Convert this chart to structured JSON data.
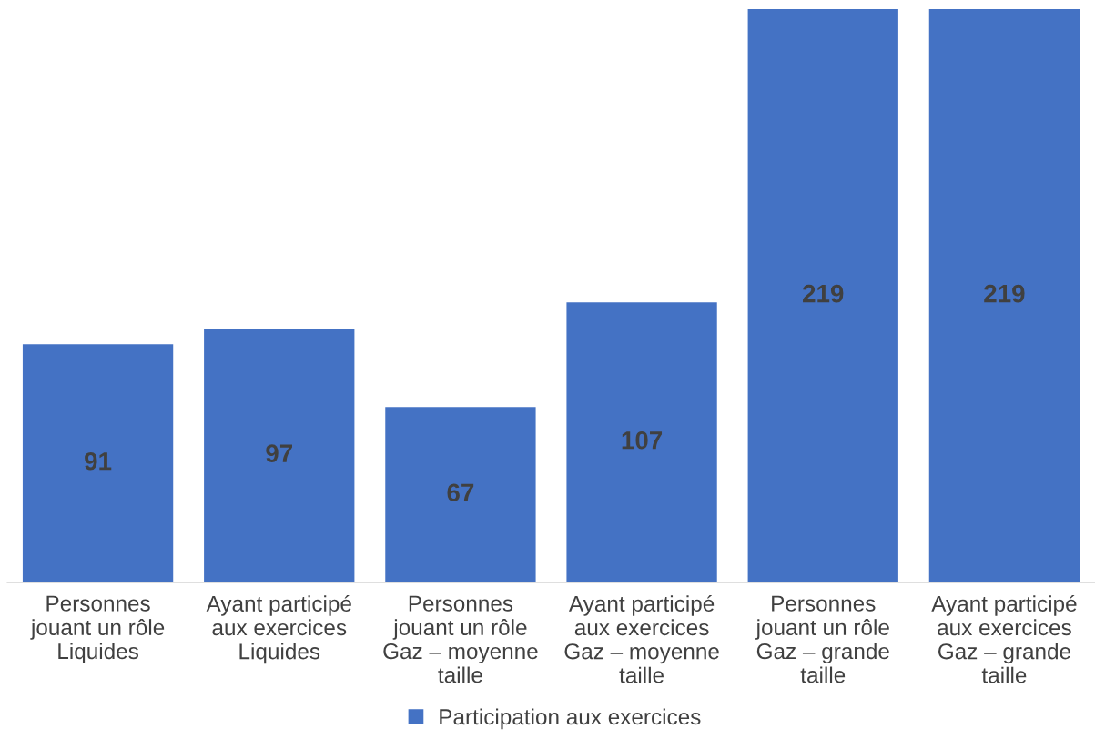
{
  "chart_data": {
    "type": "bar",
    "categories": [
      "Personnes\njouant un rôle\nLiquides",
      "Ayant participé\naux exercices\nLiquides",
      "Personnes\njouant un rôle\nGaz – moyenne\ntaille",
      "Ayant participé\naux exercices\nGaz – moyenne\ntaille",
      "Personnes\njouant un rôle\nGaz – grande\ntaille",
      "Ayant participé\naux exercices\nGaz – grande\ntaille"
    ],
    "series": [
      {
        "name": "Participation aux exercices",
        "color": "#4472c4",
        "values": [
          91,
          97,
          67,
          107,
          219,
          219
        ]
      }
    ],
    "data_labels": true,
    "legend": "bottom",
    "grid": false
  }
}
